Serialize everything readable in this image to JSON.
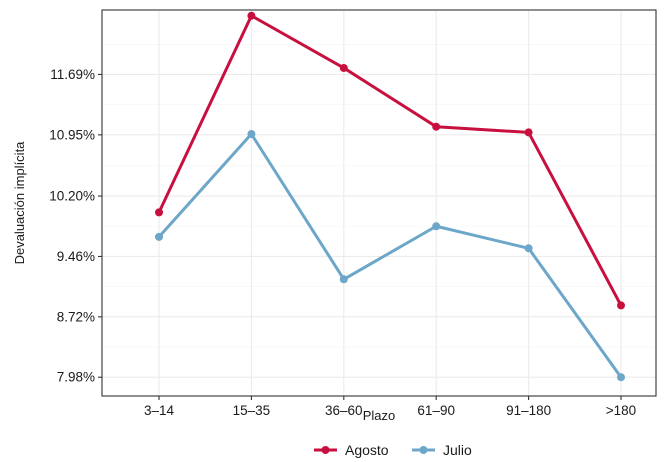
{
  "chart_data": {
    "type": "line",
    "title": "",
    "xlabel": "Plazo",
    "ylabel": "Devaluación implícita",
    "categories": [
      "3–14",
      "15–35",
      "36–60",
      "61–90",
      "91–180",
      ">180"
    ],
    "y_ticks": [
      "7.98%",
      "8.72%",
      "9.46%",
      "10.20%",
      "10.95%",
      "11.69%"
    ],
    "y_tick_values": [
      7.98,
      8.72,
      9.46,
      10.2,
      10.95,
      11.69
    ],
    "ylim": [
      7.75,
      12.48
    ],
    "grid": true,
    "legend_position": "bottom",
    "series": [
      {
        "name": "Agosto",
        "color": "#c8103e",
        "values": [
          10.0,
          12.41,
          11.77,
          11.05,
          10.98,
          8.86
        ]
      },
      {
        "name": "Julio",
        "color": "#6ca6c9",
        "values": [
          9.7,
          10.96,
          9.18,
          9.83,
          9.56,
          7.98
        ]
      }
    ]
  }
}
